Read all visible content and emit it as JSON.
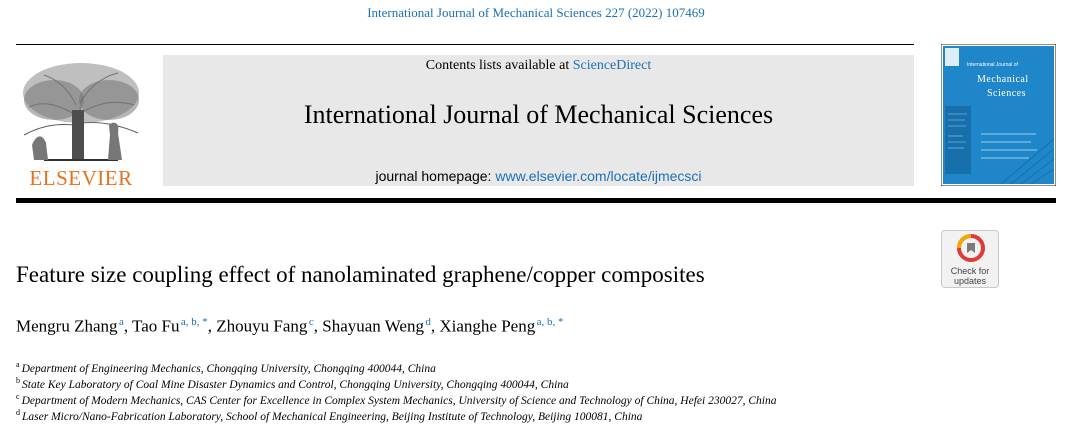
{
  "citation": "International Journal of Mechanical Sciences 227 (2022) 107469",
  "publisher": {
    "name": "ELSEVIER"
  },
  "masthead": {
    "contents_prefix": "Contents lists available at ",
    "contents_link": "ScienceDirect",
    "journal_name": "International Journal of Mechanical Sciences",
    "homepage_label": "journal homepage: ",
    "homepage_url": "www.elsevier.com/locate/ijmecsci"
  },
  "cover": {
    "title_small": "International Journal of",
    "title_line1": "Mechanical",
    "title_line2": "Sciences"
  },
  "badge": {
    "line1": "Check for",
    "line2": "updates"
  },
  "title": "Feature size coupling effect of nanolaminated graphene/copper composites",
  "authors": [
    {
      "name": "Mengru Zhang",
      "sup": "a"
    },
    {
      "name": "Tao Fu",
      "sup": "a, b, *"
    },
    {
      "name": "Zhouyu Fang",
      "sup": "c"
    },
    {
      "name": "Shayuan Weng",
      "sup": "d"
    },
    {
      "name": "Xianghe Peng",
      "sup": "a, b, *"
    }
  ],
  "affiliations": [
    {
      "key": "a",
      "text": "Department of Engineering Mechanics, Chongqing University, Chongqing 400044, China"
    },
    {
      "key": "b",
      "text": "State Key Laboratory of Coal Mine Disaster Dynamics and Control, Chongqing University, Chongqing 400044, China"
    },
    {
      "key": "c",
      "text": "Department of Modern Mechanics, CAS Center for Excellence in Complex System Mechanics, University of Science and Technology of China, Hefei 230027, China"
    },
    {
      "key": "d",
      "text": "Laser Micro/Nano-Fabrication Laboratory, School of Mechanical Engineering, Beijing Institute of Technology, Beijing 100081, China"
    }
  ],
  "colors": {
    "link": "#1a70b8",
    "elsevier_orange": "#e9711c",
    "masthead_bg": "#e8e8e8",
    "cover_blue": "#1f86c9"
  }
}
